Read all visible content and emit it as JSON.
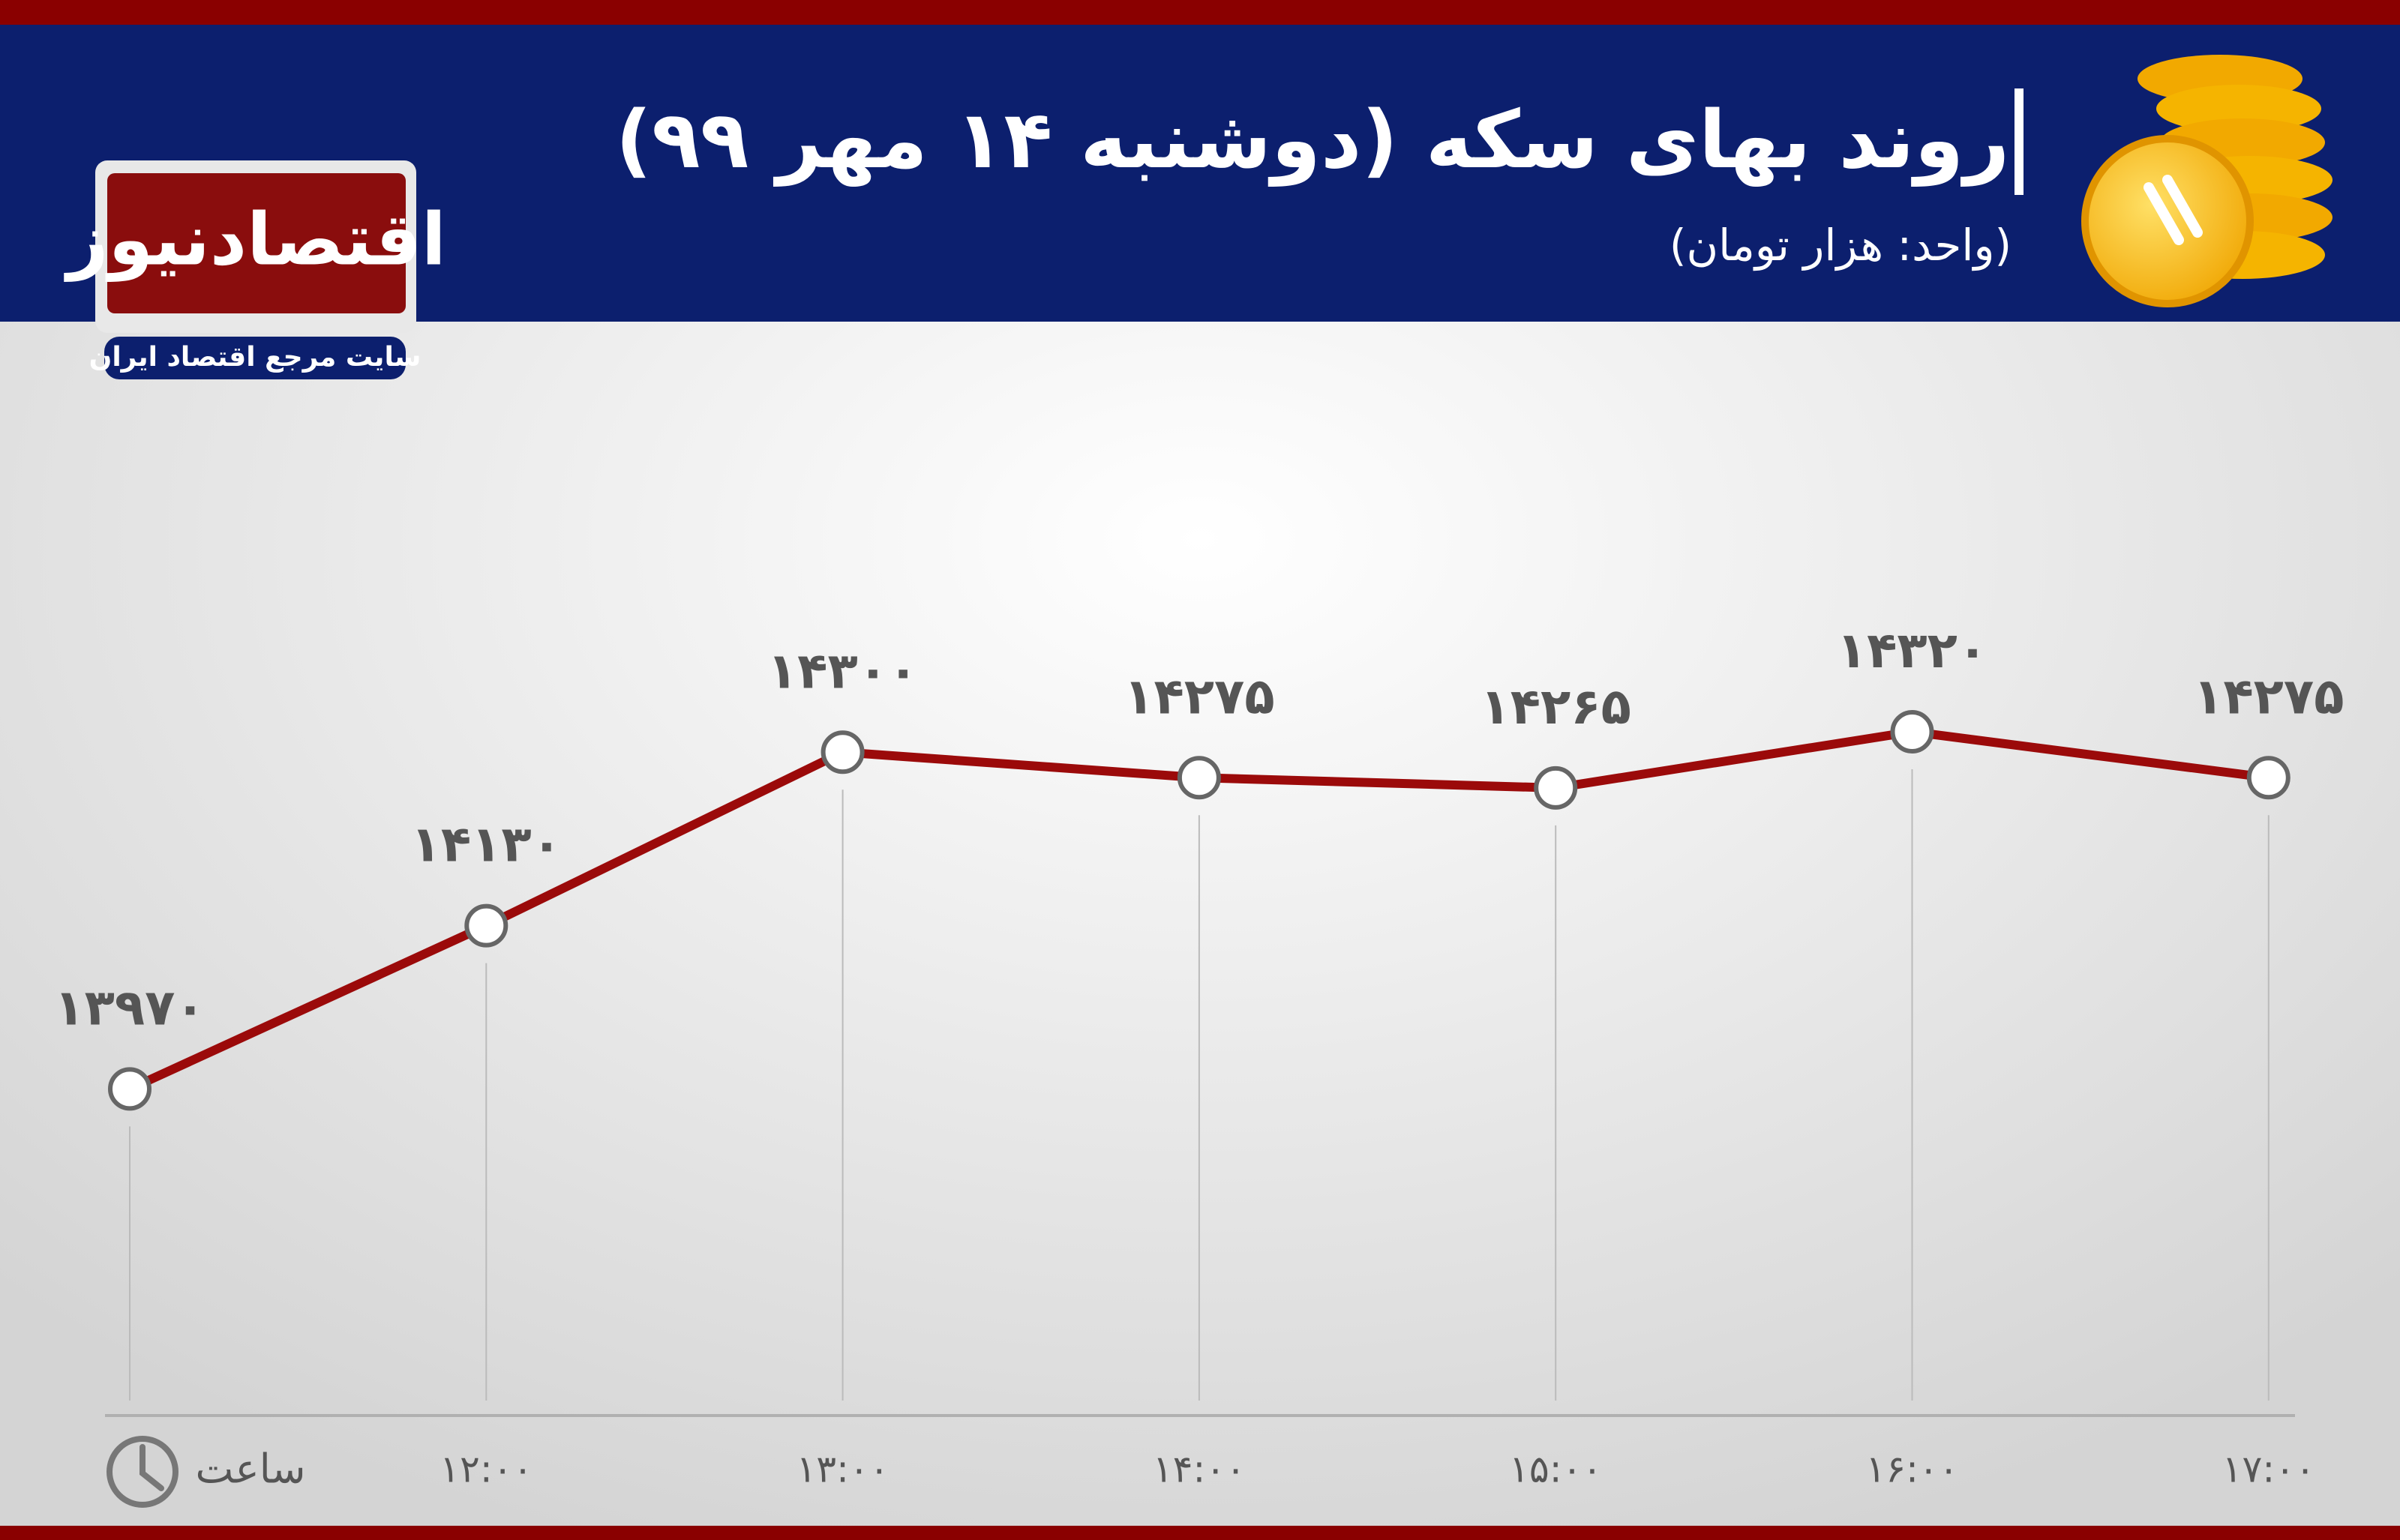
{
  "brand": {
    "name": "اقتصادنیوز",
    "tagline": "سایت مرجع اقتصاد ایران"
  },
  "chart_data": {
    "type": "line",
    "title": "روند بهای سکه (دوشنبه ۱۴ مهر ۹۹)",
    "subtitle": "(واحد: هزار تومان)",
    "x_label": "ساعت",
    "categories": [
      null,
      "۱۲:۰۰",
      "۱۳:۰۰",
      "۱۴:۰۰",
      "۱۵:۰۰",
      "۱۶:۰۰",
      "۱۷:۰۰"
    ],
    "values": [
      13970,
      14130,
      14300,
      14275,
      14265,
      14320,
      14275
    ],
    "value_labels": [
      "۱۳۹۷۰",
      "۱۴۱۳۰",
      "۱۴۳۰۰",
      "۱۴۲۷۵",
      "۱۴۲۶۵",
      "۱۴۳۲۰",
      "۱۴۲۷۵"
    ],
    "color": "#9b0a0a",
    "ylim": [
      13650,
      14500
    ]
  }
}
